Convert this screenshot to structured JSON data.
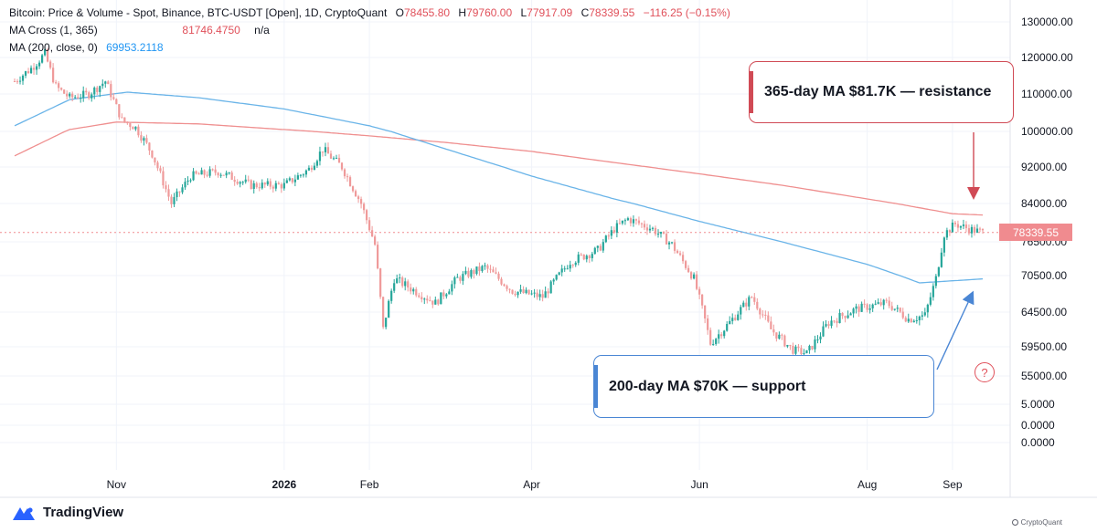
{
  "legend": {
    "title": "Bitcoin: Price & Volume - Spot, Binance, BTC-USDT [Open], 1D, CryptoQuant",
    "ohlc": {
      "o_label": "O",
      "o_value": "78455.80",
      "h_label": "H",
      "h_value": "79760.00",
      "l_label": "L",
      "l_value": "77917.09",
      "c_label": "C",
      "c_value": "78339.55",
      "change": "−116.25 (−0.15%)"
    },
    "ma_cross": {
      "label": "MA Cross (1, 365)",
      "value": "81746.4750",
      "extra": "n/a"
    },
    "ma_200": {
      "label": "MA (200, close, 0)",
      "value": "69953.2118"
    }
  },
  "callouts": {
    "resistance": "365-day MA $81.7K — resistance",
    "support": "200-day MA $70K — support"
  },
  "price_tag": "78339.55",
  "question_badge": "?",
  "brand": {
    "tradingview": "TradingView",
    "cryptoquant": "CryptoQuant"
  },
  "colors": {
    "up": "#26a69a",
    "down": "#ef9a9a",
    "ma365": "#ef8f8f",
    "ma200": "#6ab4e8",
    "resistance": "#d04a55",
    "support": "#4a86d4"
  },
  "chart_data": {
    "type": "line",
    "title": "Bitcoin: Price & Volume - Spot, Binance, BTC-USDT [Open], 1D, CryptoQuant",
    "xlabel": "",
    "ylabel": "",
    "x_ticks": [
      "Nov",
      "2026",
      "Feb",
      "Apr",
      "Jun",
      "Aug",
      "Sep"
    ],
    "y_ticks": [
      "130000.00",
      "120000.00",
      "110000.00",
      "100000.00",
      "92000.00",
      "84000.00",
      "76500.00",
      "70500.00",
      "64500.00",
      "59500.00",
      "55000.00",
      "5.0000",
      "0.0000",
      "0.0000"
    ],
    "grid": true,
    "legend_position": "top-left",
    "last_close": 78339.55,
    "series": [
      {
        "name": "MA Cross (1, 365)",
        "points": [
          [
            "2025-09-25",
            94500
          ],
          [
            "2025-10-15",
            100500
          ],
          [
            "2025-11-01",
            102500
          ],
          [
            "2025-12-01",
            102000
          ],
          [
            "2026-01-01",
            100500
          ],
          [
            "2026-02-01",
            99000
          ],
          [
            "2026-03-01",
            97500
          ],
          [
            "2026-04-01",
            95500
          ],
          [
            "2026-05-01",
            93000
          ],
          [
            "2026-06-01",
            90500
          ],
          [
            "2026-07-01",
            88000
          ],
          [
            "2026-08-01",
            85000
          ],
          [
            "2026-09-01",
            82000
          ],
          [
            "2026-09-12",
            81746
          ]
        ]
      },
      {
        "name": "MA (200, close, 0)",
        "points": [
          [
            "2025-09-25",
            101500
          ],
          [
            "2025-10-15",
            108500
          ],
          [
            "2025-11-05",
            110500
          ],
          [
            "2025-12-01",
            109000
          ],
          [
            "2026-01-01",
            106000
          ],
          [
            "2026-02-01",
            101500
          ],
          [
            "2026-03-01",
            96000
          ],
          [
            "2026-04-01",
            90000
          ],
          [
            "2026-05-01",
            85000
          ],
          [
            "2026-06-01",
            80500
          ],
          [
            "2026-07-01",
            76500
          ],
          [
            "2026-08-01",
            72500
          ],
          [
            "2026-08-20",
            69300
          ],
          [
            "2026-09-12",
            69953
          ]
        ]
      },
      {
        "name": "Price",
        "points": [
          [
            "2025-09-25",
            113500
          ],
          [
            "2025-10-01",
            117000
          ],
          [
            "2025-10-06",
            121000
          ],
          [
            "2025-10-10",
            112000
          ],
          [
            "2025-10-15",
            109000
          ],
          [
            "2025-10-22",
            110000
          ],
          [
            "2025-10-28",
            113500
          ],
          [
            "2025-11-03",
            103000
          ],
          [
            "2025-11-08",
            101000
          ],
          [
            "2025-11-14",
            95000
          ],
          [
            "2025-11-21",
            84000
          ],
          [
            "2025-11-28",
            90000
          ],
          [
            "2025-12-08",
            91000
          ],
          [
            "2025-12-20",
            88000
          ],
          [
            "2026-01-01",
            88000
          ],
          [
            "2026-01-10",
            91500
          ],
          [
            "2026-01-15",
            96000
          ],
          [
            "2026-01-22",
            92000
          ],
          [
            "2026-01-29",
            84000
          ],
          [
            "2026-02-03",
            76000
          ],
          [
            "2026-02-06",
            62000
          ],
          [
            "2026-02-10",
            70000
          ],
          [
            "2026-02-25",
            66000
          ],
          [
            "2026-03-05",
            70000
          ],
          [
            "2026-03-15",
            72000
          ],
          [
            "2026-03-25",
            68000
          ],
          [
            "2026-04-05",
            67000
          ],
          [
            "2026-04-15",
            73000
          ],
          [
            "2026-04-25",
            75000
          ],
          [
            "2026-05-01",
            79000
          ],
          [
            "2026-05-06",
            81000
          ],
          [
            "2026-05-15",
            79000
          ],
          [
            "2026-05-22",
            76000
          ],
          [
            "2026-05-30",
            70000
          ],
          [
            "2026-06-05",
            60000
          ],
          [
            "2026-06-12",
            63000
          ],
          [
            "2026-06-20",
            67000
          ],
          [
            "2026-06-27",
            62000
          ],
          [
            "2026-07-05",
            59000
          ],
          [
            "2026-07-10",
            58500
          ],
          [
            "2026-07-18",
            63000
          ],
          [
            "2026-07-28",
            65000
          ],
          [
            "2026-08-08",
            66000
          ],
          [
            "2026-08-16",
            63500
          ],
          [
            "2026-08-22",
            64000
          ],
          [
            "2026-08-26",
            70000
          ],
          [
            "2026-08-29",
            78000
          ],
          [
            "2026-09-02",
            80000
          ],
          [
            "2026-09-07",
            79000
          ],
          [
            "2026-09-12",
            78340
          ]
        ]
      }
    ],
    "annotations": [
      {
        "text": "365-day MA $81.7K — resistance",
        "target_series": "MA Cross (1, 365)"
      },
      {
        "text": "200-day MA $70K — support",
        "target_series": "MA (200, close, 0)"
      }
    ]
  }
}
